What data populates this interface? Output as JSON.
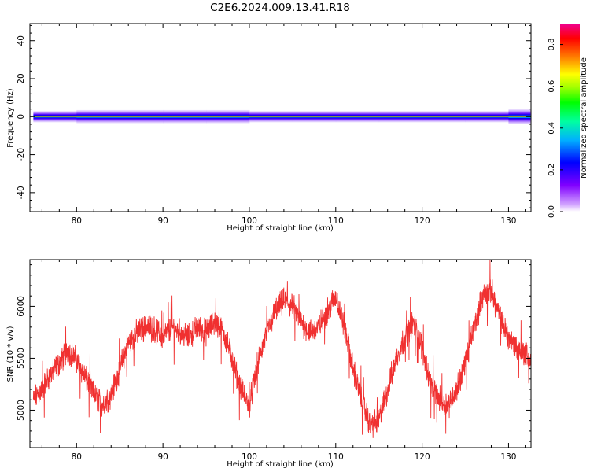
{
  "title": "C2E6.2024.009.13.41.R18",
  "chart_data": [
    {
      "type": "heatmap",
      "xlabel": "Height of straight line (km)",
      "ylabel": "Frequency (Hz)",
      "xlim": [
        74.6,
        132.6
      ],
      "ylim": [
        -50,
        49
      ],
      "x_ticks": [
        80,
        90,
        100,
        110,
        120,
        130
      ],
      "y_ticks": [
        -40,
        -20,
        0,
        20,
        40
      ],
      "band": {
        "center_frequency": 0,
        "x": [
          75,
          80,
          85,
          90,
          95,
          100,
          105,
          110,
          115,
          120,
          125,
          130,
          132.5
        ],
        "half_width_hz": [
          3,
          3,
          3.5,
          3.5,
          3.5,
          3,
          3,
          3,
          3,
          3,
          3,
          3,
          4
        ]
      },
      "colorbar": {
        "label": "Normalized spectral amplitude",
        "range": [
          0,
          0.9
        ],
        "ticks": [
          0.0,
          0.2,
          0.4,
          0.6,
          0.8
        ]
      }
    },
    {
      "type": "line",
      "xlabel": "Height of straight line (km)",
      "ylabel": "SNR (10 * v/v)",
      "xlim": [
        74.6,
        132.6
      ],
      "ylim": [
        4640,
        6450
      ],
      "x_ticks": [
        80,
        90,
        100,
        110,
        120,
        130
      ],
      "y_ticks": [
        5000,
        5500,
        6000
      ],
      "color": "#f03030",
      "x": [
        75,
        76,
        77,
        78,
        79,
        80,
        81,
        82,
        83,
        84,
        85,
        86,
        87,
        88,
        89,
        90,
        91,
        92,
        93,
        94,
        95,
        96,
        97,
        98,
        99,
        100,
        101,
        102,
        103,
        104,
        105,
        106,
        107,
        108,
        109,
        110,
        111,
        112,
        113,
        114,
        115,
        116,
        117,
        118,
        119,
        120,
        121,
        122,
        123,
        124,
        125,
        126,
        127,
        128,
        129,
        130,
        131,
        132,
        132.6
      ],
      "y": [
        5100,
        5200,
        5350,
        5450,
        5580,
        5480,
        5320,
        5150,
        5050,
        5150,
        5400,
        5650,
        5750,
        5800,
        5780,
        5700,
        5800,
        5750,
        5700,
        5800,
        5750,
        5850,
        5750,
        5500,
        5200,
        5050,
        5450,
        5750,
        5950,
        6050,
        6000,
        5850,
        5750,
        5800,
        5950,
        6100,
        5800,
        5400,
        5100,
        4850,
        4900,
        5200,
        5500,
        5700,
        5850,
        5600,
        5250,
        5100,
        5050,
        5200,
        5450,
        5800,
        6100,
        6150,
        5900,
        5700,
        5600,
        5550,
        5450
      ]
    }
  ]
}
